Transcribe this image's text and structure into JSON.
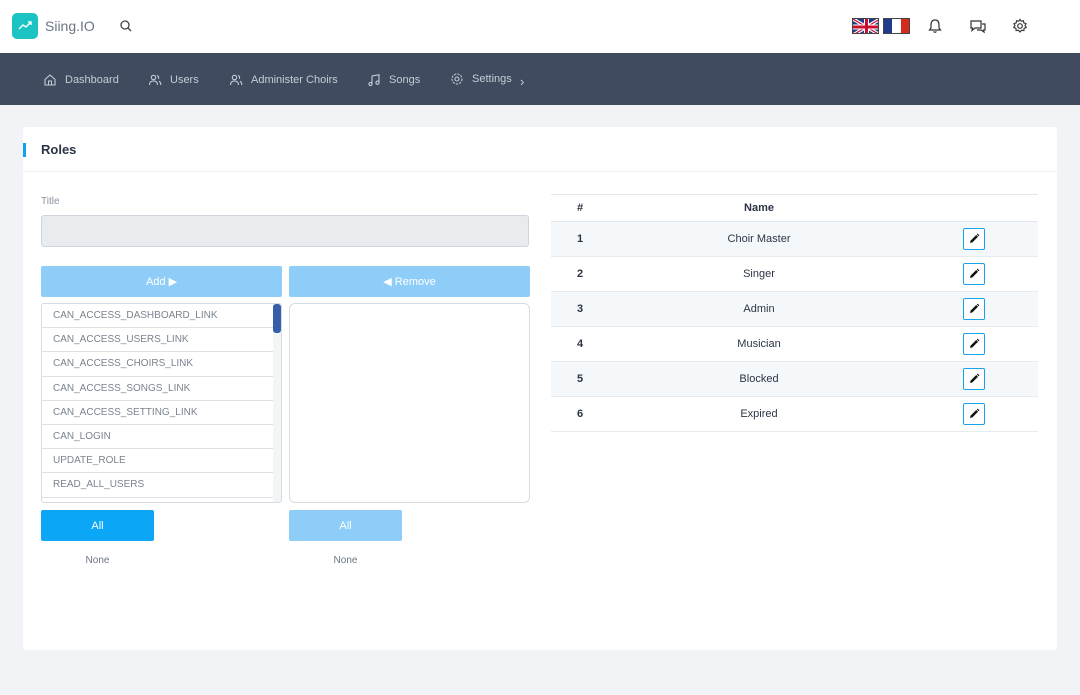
{
  "app": {
    "brand": "Siing.IO"
  },
  "nav": {
    "items": [
      {
        "label": "Dashboard",
        "icon": "home-icon"
      },
      {
        "label": "Users",
        "icon": "users-icon"
      },
      {
        "label": "Administer Choirs",
        "icon": "users-icon"
      },
      {
        "label": "Songs",
        "icon": "music-note-icon"
      },
      {
        "label": "Settings",
        "icon": "gear-icon"
      }
    ]
  },
  "roles_page": {
    "title": "Roles",
    "title_field_label": "Title",
    "title_field_value": "",
    "add_button": "Add ▶",
    "remove_button": "◀ Remove",
    "available_permissions": [
      "CAN_ACCESS_DASHBOARD_LINK",
      "CAN_ACCESS_USERS_LINK",
      "CAN_ACCESS_CHOIRS_LINK",
      "CAN_ACCESS_SONGS_LINK",
      "CAN_ACCESS_SETTING_LINK",
      "CAN_LOGIN",
      "UPDATE_ROLE",
      "READ_ALL_USERS"
    ],
    "selected_permissions": [],
    "all_left": "All",
    "all_right": "All",
    "none_left": "None",
    "none_right": "None"
  },
  "roles_table": {
    "headers": {
      "num": "#",
      "name": "Name"
    },
    "rows": [
      {
        "num": "1",
        "name": "Choir Master"
      },
      {
        "num": "2",
        "name": "Singer"
      },
      {
        "num": "3",
        "name": "Admin"
      },
      {
        "num": "4",
        "name": "Musician"
      },
      {
        "num": "5",
        "name": "Blocked"
      },
      {
        "num": "6",
        "name": "Expired"
      }
    ]
  },
  "colors": {
    "brand": "#1cc3c3",
    "nav_bg": "#404b5f",
    "accent": "#15a0ef",
    "button_light": "#8fcdf9",
    "button_primary": "#0ba6f5"
  }
}
